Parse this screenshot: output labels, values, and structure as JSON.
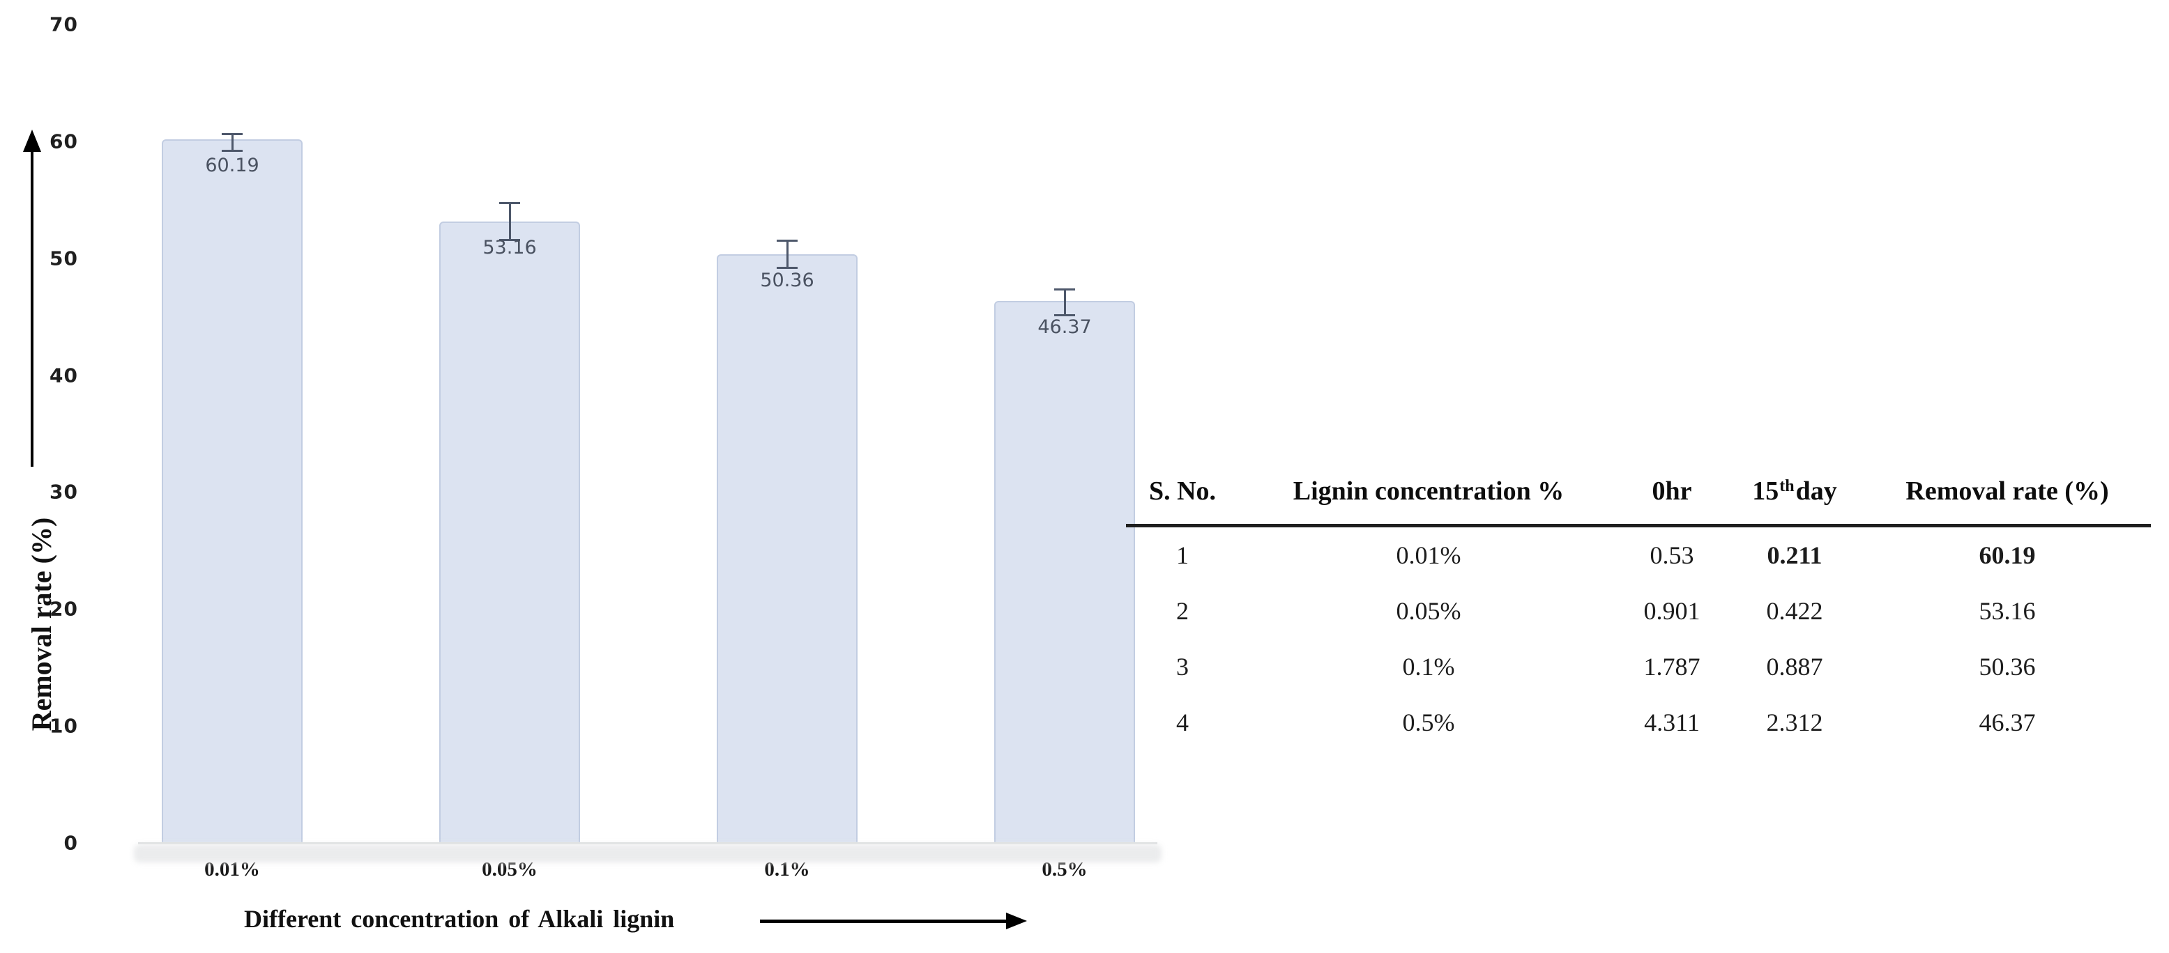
{
  "chart_data": {
    "type": "bar",
    "title": "",
    "categories": [
      "0.01%",
      "0.05%",
      "0.1%",
      "0.5%"
    ],
    "values": [
      60.19,
      53.16,
      50.36,
      46.37
    ],
    "bar_labels": [
      "60.19",
      "53.16",
      "50.36",
      "46.37"
    ],
    "error_up": [
      0.45,
      1.6,
      1.2,
      1.0
    ],
    "error_down": [
      1.05,
      1.6,
      1.2,
      1.3
    ],
    "xlabel": "Different concentration of Alkali lignin",
    "ylabel": "Removal rate (%)",
    "ylim": [
      0,
      70
    ],
    "yticks": [
      0,
      10,
      20,
      30,
      40,
      50,
      60,
      70
    ],
    "grid": false,
    "legend": "none",
    "bar_color": "#dce3f1",
    "bar_border_color": "#c2cde2",
    "value_label_color": "#4a5261",
    "error_bar_color": "#4e586b"
  },
  "table": {
    "headers": [
      "S. No.",
      "Lignin concentration %",
      "0hr",
      "15th day",
      "Removal rate (%)"
    ],
    "header_simple": {
      "col1": "S. No.",
      "col2": "Lignin concentration %",
      "col3": "0hr",
      "col5": "Removal rate (%)"
    },
    "header_day": {
      "num": "15",
      "sup": "th",
      "rest": "day"
    },
    "rows": [
      [
        "1",
        "0.01%",
        "0.53",
        "0.211",
        "60.19"
      ],
      [
        "2",
        "0.05%",
        "0.901",
        "0.422",
        "53.16"
      ],
      [
        "3",
        "0.1%",
        "1.787",
        "0.887",
        "50.36"
      ],
      [
        "4",
        "0.5%",
        "4.311",
        "2.312",
        "46.37"
      ]
    ]
  }
}
